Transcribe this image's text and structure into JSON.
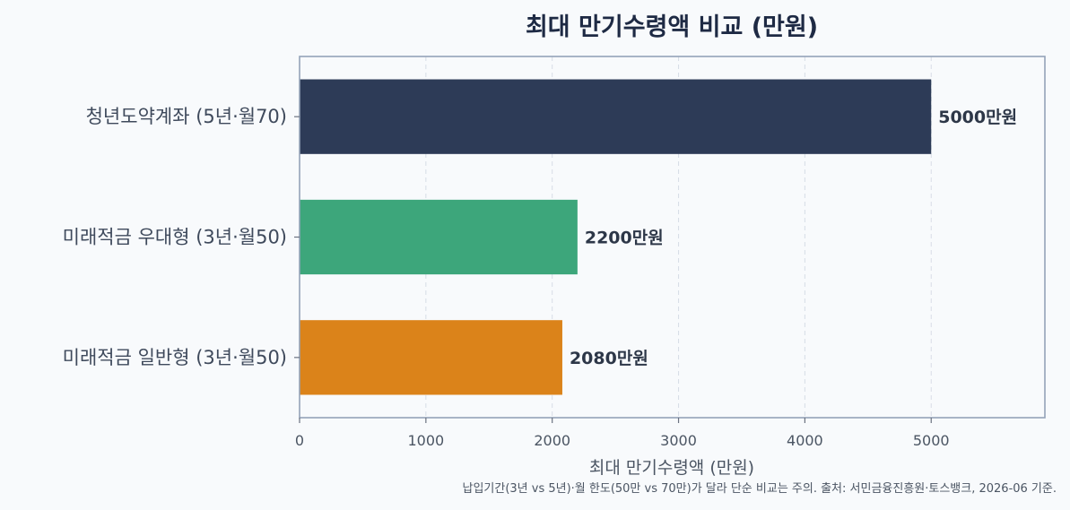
{
  "chart_data": {
    "type": "bar",
    "orientation": "horizontal",
    "title": "최대 만기수령액 비교 (만원)",
    "xlabel": "최대 만기수령액 (만원)",
    "ylabel": "",
    "categories": [
      "청년도약계좌 (5년·월70)",
      "미래적금 우대형 (3년·월50)",
      "미래적금 일반형 (3년·월50)"
    ],
    "values": [
      5000,
      2200,
      2080
    ],
    "value_labels": [
      "5000만원",
      "2200만원",
      "2080만원"
    ],
    "colors": [
      "#2d3b57",
      "#3da67b",
      "#db831a"
    ],
    "xlim": [
      0,
      5900
    ],
    "xticks": [
      0,
      1000,
      2000,
      3000,
      4000,
      5000
    ],
    "grid": "vertical dashed",
    "footnote": "납입기간(3년 vs 5년)·월 한도(50만 vs 70만)가 달라 단순 비교는 주의. 출처: 서민금융진흥원·토스뱅크, 2026-06 기준."
  }
}
